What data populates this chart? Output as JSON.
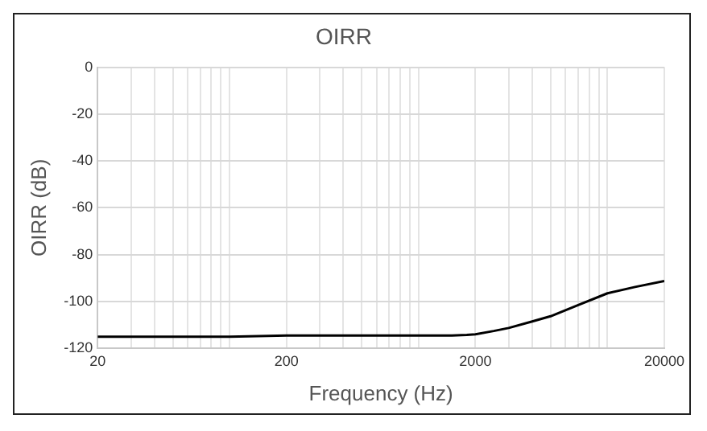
{
  "chart_data": {
    "type": "line",
    "title": "OIRR",
    "xlabel": "Frequency (Hz)",
    "ylabel": "OIRR (dB)",
    "x": [
      20,
      50,
      100,
      200,
      500,
      1000,
      1500,
      1800,
      2000,
      2500,
      3000,
      4000,
      5000,
      7000,
      10000,
      14000,
      20000
    ],
    "series": [
      {
        "color": "#000000",
        "values": [
          -115,
          -115,
          -115,
          -114.5,
          -114.5,
          -114.5,
          -114.5,
          -114.3,
          -114,
          -112.6,
          -111.3,
          -108.5,
          -106.3,
          -101.5,
          -96.5,
          -93.8,
          -91.3
        ]
      }
    ],
    "xlim": [
      20,
      20000
    ],
    "ylim": [
      -120,
      0
    ],
    "xticks": [
      20,
      {
        "value": 30,
        "label": null
      },
      {
        "value": 40,
        "label": null
      },
      {
        "value": 50,
        "label": null
      },
      {
        "value": 60,
        "label": null
      },
      {
        "value": 70,
        "label": null
      },
      {
        "value": 80,
        "label": null
      },
      {
        "value": 90,
        "label": null
      },
      {
        "value": 100,
        "label": null
      },
      200,
      {
        "value": 300,
        "label": null
      },
      {
        "value": 400,
        "label": null
      },
      {
        "value": 500,
        "label": null
      },
      {
        "value": 600,
        "label": null
      },
      {
        "value": 700,
        "label": null
      },
      {
        "value": 800,
        "label": null
      },
      {
        "value": 900,
        "label": null
      },
      {
        "value": 1000,
        "label": null
      },
      2000,
      {
        "value": 3000,
        "label": null
      },
      {
        "value": 4000,
        "label": null
      },
      {
        "value": 5000,
        "label": null
      },
      {
        "value": 6000,
        "label": null
      },
      {
        "value": 7000,
        "label": null
      },
      {
        "value": 8000,
        "label": null
      },
      {
        "value": 9000,
        "label": null
      },
      {
        "value": 10000,
        "label": null
      },
      20000
    ],
    "yticks": [
      -120,
      -100,
      -80,
      -60,
      -40,
      -20,
      0
    ],
    "log": "x",
    "grid": true,
    "legend": false,
    "marker": "none",
    "line_style": "solid"
  }
}
